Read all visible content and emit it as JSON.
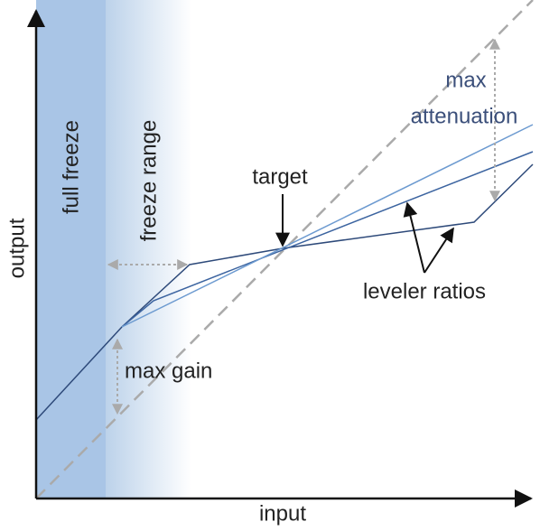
{
  "axes": {
    "x_label": "input",
    "y_label": "output"
  },
  "regions": {
    "full_freeze": "full freeze",
    "freeze_range": "freeze range"
  },
  "annotations": {
    "max_attenuation": [
      "max",
      "attenuation"
    ],
    "target": "target",
    "leveler_ratios": "leveler ratios",
    "max_gain": "max gain"
  }
}
